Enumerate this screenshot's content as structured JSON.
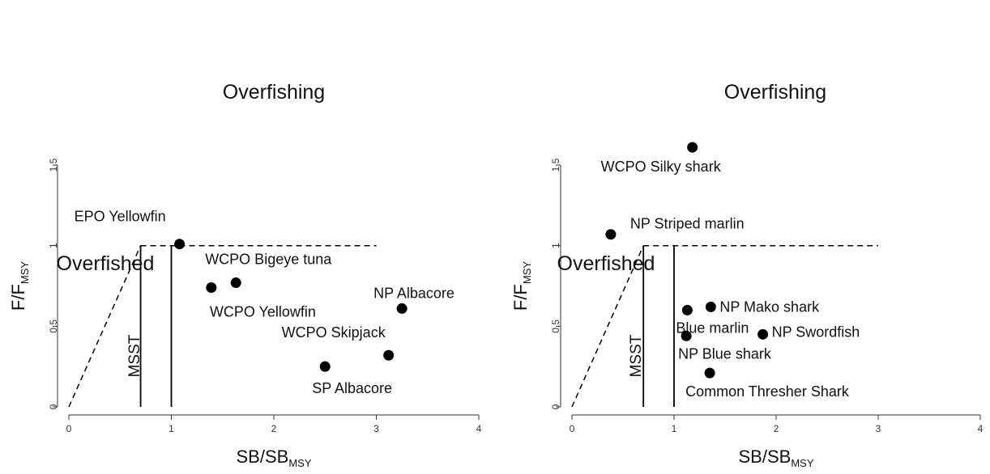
{
  "chart_data": [
    {
      "type": "scatter",
      "xlabel": {
        "main": "SB",
        "sub": "MSY"
      },
      "ylabel": {
        "main": "F",
        "sub": "MSY"
      },
      "xlim": [
        0,
        4
      ],
      "ylim": [
        0,
        1.5
      ],
      "xticks": [
        "0",
        "1",
        "2",
        "3",
        "4"
      ],
      "yticks": [
        "0",
        "0.5",
        "1",
        "1.5"
      ],
      "grid": false,
      "regions": {
        "overfishing": "Overfishing",
        "overfished": "Overfished"
      },
      "msst_label": "MSST",
      "reference_lines": {
        "msst_x": 0.7,
        "target_x": 1.0,
        "limit_y": 1.0,
        "limit_x_end": 3.0
      },
      "points": [
        {
          "label": "EPO Yellowfin",
          "x": 1.08,
          "y": 1.01
        },
        {
          "label": "WCPO Bigeye tuna",
          "x": 1.63,
          "y": 0.77
        },
        {
          "label": "WCPO Yellowfin",
          "x": 1.39,
          "y": 0.74
        },
        {
          "label": "NP Albacore",
          "x": 3.25,
          "y": 0.61
        },
        {
          "label": "WCPO Skipjack",
          "x": 3.12,
          "y": 0.32
        },
        {
          "label": "SP Albacore",
          "x": 2.5,
          "y": 0.25
        }
      ]
    },
    {
      "type": "scatter",
      "xlabel": {
        "main": "SB",
        "sub": "MSY"
      },
      "ylabel": {
        "main": "F",
        "sub": "MSY"
      },
      "xlim": [
        0,
        4
      ],
      "ylim": [
        0,
        1.5
      ],
      "xticks": [
        "0",
        "1",
        "2",
        "3",
        "4"
      ],
      "yticks": [
        "0",
        "0.5",
        "1",
        "1.5"
      ],
      "grid": false,
      "regions": {
        "overfishing": "Overfishing",
        "overfished": "Overfished"
      },
      "msst_label": "MSST",
      "reference_lines": {
        "msst_x": 0.7,
        "target_x": 1.0,
        "limit_y": 1.0,
        "limit_x_end": 3.0
      },
      "points": [
        {
          "label": "WCPO Silky shark",
          "x": 1.18,
          "y": 1.61
        },
        {
          "label": "NP Striped marlin",
          "x": 0.38,
          "y": 1.07
        },
        {
          "label": "NP Mako shark",
          "x": 1.36,
          "y": 0.62
        },
        {
          "label": "Blue marlin",
          "x": 1.13,
          "y": 0.6
        },
        {
          "label": "NP Swordfish",
          "x": 1.87,
          "y": 0.45
        },
        {
          "label": "NP Blue shark",
          "x": 1.12,
          "y": 0.44
        },
        {
          "label": "Common Thresher Shark",
          "x": 1.35,
          "y": 0.21
        }
      ]
    }
  ]
}
